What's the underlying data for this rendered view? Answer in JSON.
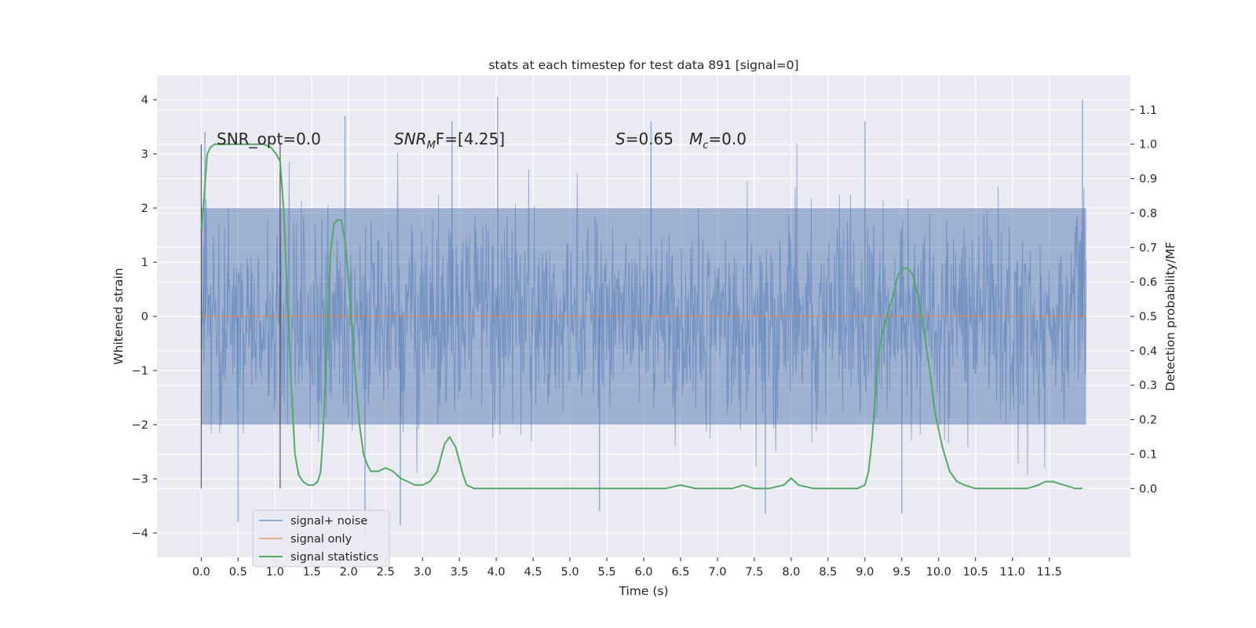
{
  "chart_data": {
    "type": "line",
    "title": "stats at each timestep for test data 891 [signal=0]",
    "xlabel": "Time (s)",
    "ylabel": "Whitened strain",
    "ylabel_right": "Detection probability/MF",
    "xlim": [
      -0.6,
      12.6
    ],
    "ylim": [
      -4.45,
      4.45
    ],
    "ylim_right": [
      -0.2,
      1.2
    ],
    "x_ticks": [
      "0.0",
      "0.5",
      "1.0",
      "1.5",
      "2.0",
      "2.5",
      "3.0",
      "3.5",
      "4.0",
      "4.5",
      "5.0",
      "5.5",
      "6.0",
      "6.5",
      "7.0",
      "7.5",
      "8.0",
      "8.5",
      "9.0",
      "9.5",
      "10.0",
      "10.5",
      "11.0",
      "11.5"
    ],
    "y_ticks": [
      "−4",
      "−3",
      "−2",
      "−1",
      "0",
      "1",
      "2",
      "3",
      "4"
    ],
    "y_ticks_right": [
      "0.0",
      "0.1",
      "0.2",
      "0.3",
      "0.4",
      "0.5",
      "0.6",
      "0.7",
      "0.8",
      "0.9",
      "1.0",
      "1.1"
    ],
    "annotations": {
      "snr_opt": "SNR_opt=0.0",
      "snr_mf_main": "SNR",
      "snr_mf_sub": "M",
      "snr_mf_rest": "F=[4.25]",
      "s_label": "S",
      "s_value": "=0.65",
      "mc_main": "M",
      "mc_sub": "c",
      "mc_value": "=0.0"
    },
    "vlines_x": [
      0.0,
      1.07
    ],
    "colors": {
      "noise": "#4c72b0",
      "signal": "#dd8452",
      "stats": "#55a868",
      "background": "#eaeaf2"
    },
    "series": [
      {
        "name": "signal+ noise",
        "x_range": [
          0.0,
          12.0
        ],
        "envelope_typical": 2.0,
        "peaks": [
          {
            "x": 0.05,
            "y": 3.4
          },
          {
            "x": 1.95,
            "y": 3.7
          },
          {
            "x": 3.4,
            "y": 3.6
          },
          {
            "x": 4.02,
            "y": 4.05
          },
          {
            "x": 6.1,
            "y": 3.6
          },
          {
            "x": 9.0,
            "y": 3.6
          },
          {
            "x": 11.95,
            "y": 4.0
          },
          {
            "x": 2.22,
            "y": -4.0
          },
          {
            "x": 2.7,
            "y": -3.85
          },
          {
            "x": 0.5,
            "y": -3.8
          },
          {
            "x": 5.4,
            "y": -3.6
          },
          {
            "x": 9.5,
            "y": -3.65
          },
          {
            "x": 7.65,
            "y": -3.65
          }
        ]
      },
      {
        "name": "signal only",
        "x": [
          0.0,
          12.0
        ],
        "y": [
          0.0,
          0.0
        ]
      },
      {
        "name": "signal statistics",
        "axis": "right",
        "x": [
          0.0,
          0.04,
          0.08,
          0.12,
          0.18,
          0.25,
          0.35,
          0.5,
          0.7,
          0.85,
          0.95,
          1.02,
          1.07,
          1.12,
          1.18,
          1.22,
          1.27,
          1.32,
          1.38,
          1.45,
          1.52,
          1.58,
          1.62,
          1.65,
          1.7,
          1.75,
          1.8,
          1.85,
          1.9,
          1.95,
          2.0,
          2.05,
          2.1,
          2.15,
          2.2,
          2.25,
          2.3,
          2.35,
          2.4,
          2.5,
          2.6,
          2.7,
          2.8,
          2.9,
          3.0,
          3.1,
          3.2,
          3.3,
          3.37,
          3.45,
          3.5,
          3.55,
          3.6,
          3.7,
          3.8,
          4.0,
          5.0,
          5.5,
          6.0,
          6.3,
          6.5,
          6.7,
          7.0,
          7.2,
          7.35,
          7.5,
          7.7,
          7.9,
          8.0,
          8.1,
          8.3,
          8.5,
          8.7,
          8.9,
          9.0,
          9.05,
          9.1,
          9.15,
          9.2,
          9.3,
          9.38,
          9.45,
          9.52,
          9.58,
          9.65,
          9.72,
          9.8,
          9.88,
          9.95,
          10.05,
          10.15,
          10.25,
          10.35,
          10.5,
          10.8,
          11.0,
          11.2,
          11.35,
          11.45,
          11.55,
          11.7,
          11.85,
          11.95
        ],
        "y": [
          0.75,
          0.85,
          0.97,
          0.99,
          1.0,
          1.0,
          1.0,
          1.0,
          1.0,
          1.0,
          0.99,
          0.97,
          0.95,
          0.8,
          0.5,
          0.3,
          0.1,
          0.04,
          0.02,
          0.01,
          0.01,
          0.02,
          0.05,
          0.15,
          0.4,
          0.68,
          0.77,
          0.78,
          0.78,
          0.72,
          0.6,
          0.45,
          0.3,
          0.18,
          0.1,
          0.07,
          0.05,
          0.05,
          0.05,
          0.06,
          0.05,
          0.03,
          0.02,
          0.01,
          0.01,
          0.02,
          0.05,
          0.13,
          0.15,
          0.12,
          0.08,
          0.04,
          0.01,
          0.0,
          0.0,
          0.0,
          0.0,
          0.0,
          0.0,
          0.0,
          0.01,
          0.0,
          0.0,
          0.0,
          0.01,
          0.0,
          0.0,
          0.01,
          0.03,
          0.01,
          0.0,
          0.0,
          0.0,
          0.0,
          0.01,
          0.05,
          0.15,
          0.3,
          0.42,
          0.5,
          0.56,
          0.62,
          0.64,
          0.64,
          0.62,
          0.56,
          0.46,
          0.34,
          0.22,
          0.12,
          0.05,
          0.02,
          0.01,
          0.0,
          0.0,
          0.0,
          0.0,
          0.01,
          0.02,
          0.02,
          0.01,
          0.0,
          0.0
        ]
      }
    ],
    "legend_position": "lower-left",
    "grid": true
  }
}
